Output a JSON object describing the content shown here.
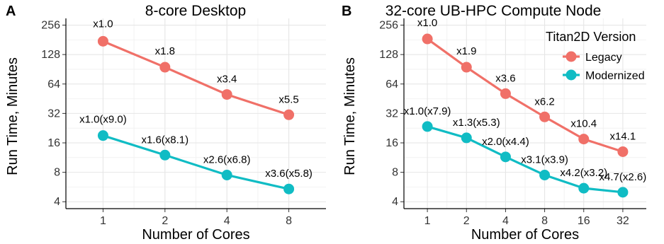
{
  "colors": {
    "legacy": "#F07068",
    "modernized": "#10BCC4"
  },
  "legend": {
    "title": "Titan2D Version",
    "items": [
      "Legacy",
      "Modernized"
    ],
    "placement": "top-right"
  },
  "chart_data": [
    {
      "type": "line",
      "panel_label": "A",
      "title": "8-core Desktop",
      "xlabel": "Number of Cores",
      "ylabel": "Run Time, Minutes",
      "x_scale": "log2",
      "y_scale": "log2",
      "grid": true,
      "categories": [
        "1",
        "2",
        "4",
        "8"
      ],
      "x": [
        1,
        2,
        4,
        8
      ],
      "yticks": [
        4,
        8,
        16,
        32,
        64,
        128,
        256
      ],
      "ylim": [
        3.4,
        300
      ],
      "series": [
        {
          "name": "Legacy",
          "values": [
            175,
            95,
            50,
            31
          ],
          "labels": [
            "x1.0",
            "x1.8",
            "x3.4",
            "x5.5"
          ]
        },
        {
          "name": "Modernized",
          "values": [
            19,
            12,
            7.5,
            5.4
          ],
          "labels": [
            "x1.0(x9.0)",
            "x1.6(x8.1)",
            "x2.6(x6.8)",
            "x3.6(x5.8)"
          ]
        }
      ]
    },
    {
      "type": "line",
      "panel_label": "B",
      "title": "32-core UB-HPC Compute Node",
      "xlabel": "Number of Cores",
      "ylabel": "Run Time, Minutes",
      "x_scale": "log2",
      "y_scale": "log2",
      "grid": true,
      "categories": [
        "1",
        "2",
        "4",
        "8",
        "16",
        "32"
      ],
      "x": [
        1,
        2,
        4,
        8,
        16,
        32
      ],
      "yticks": [
        4,
        8,
        16,
        32,
        64,
        128,
        256
      ],
      "ylim": [
        3.4,
        300
      ],
      "series": [
        {
          "name": "Legacy",
          "values": [
            185,
            95,
            51,
            29.5,
            17.5,
            13
          ],
          "labels": [
            "x1.0",
            "x1.9",
            "x3.6",
            "x6.2",
            "x10.4",
            "x14.1"
          ]
        },
        {
          "name": "Modernized",
          "values": [
            23.5,
            18,
            11.5,
            7.5,
            5.5,
            5
          ],
          "labels": [
            "x1.0(x7.9)",
            "x1.3(x5.3)",
            "x2.0(x4.4)",
            "x3.1(x3.9)",
            "x4.2(x3.2)",
            "x4.7(x2.6)"
          ]
        }
      ]
    }
  ]
}
